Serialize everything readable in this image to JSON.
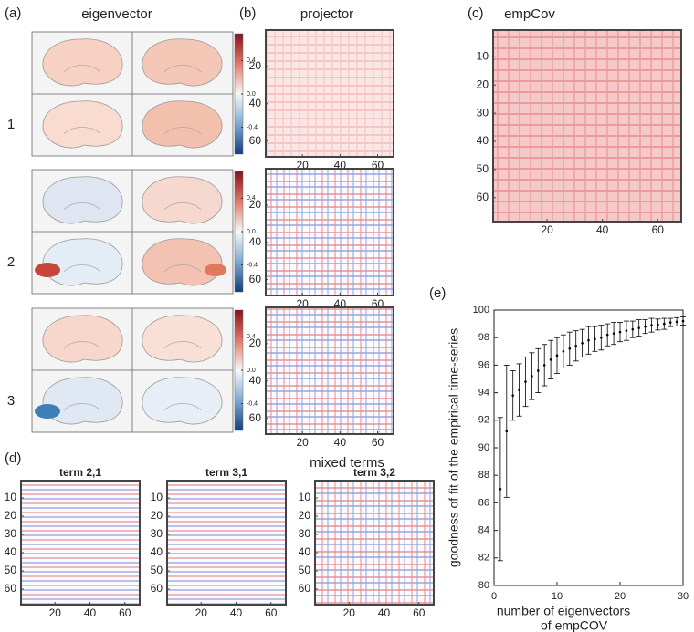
{
  "panel_labels": [
    "(a)",
    "(b)",
    "(c)",
    "(d)",
    "(e)"
  ],
  "eigenvector": {
    "title": "eigenvector",
    "rows": [
      "1",
      "2",
      "3"
    ],
    "colorbar": {
      "lim": [
        -0.72,
        0.72
      ],
      "ticks": [
        0.4,
        {
          "value": 0,
          "label": "0.0"
        },
        -0.4
      ]
    }
  },
  "projector": {
    "title": "projector",
    "xlim": [
      0.5,
      68.5
    ],
    "ylim": [
      0.5,
      68.5
    ],
    "xticks": [
      20,
      40,
      60
    ],
    "yticks": [
      20,
      40,
      60
    ]
  },
  "empcov": {
    "title": "empCov",
    "xlim": [
      0.5,
      68.5
    ],
    "ylim": [
      0.5,
      68.5
    ],
    "xticks": [
      20,
      40,
      60
    ],
    "yticks": [
      10,
      20,
      30,
      40,
      50,
      60
    ]
  },
  "mixed": {
    "title": "mixed terms",
    "terms": [
      "term 2,1",
      "term 3,1",
      "term 3,2"
    ],
    "xlim": [
      0.5,
      68.5
    ],
    "ylim": [
      0.5,
      68.5
    ],
    "xticks": [
      20,
      40,
      60
    ],
    "yticks": [
      10,
      20,
      30,
      40,
      50,
      60
    ]
  },
  "chart_data": {
    "type": "errorbar",
    "ylabel": "goodness of fit of the empirical time-series",
    "xlabel": [
      "number of eigenvectors",
      "of empCOV"
    ],
    "x": [
      1,
      2,
      3,
      4,
      5,
      6,
      7,
      8,
      9,
      10,
      11,
      12,
      13,
      14,
      15,
      16,
      17,
      18,
      19,
      20,
      21,
      22,
      23,
      24,
      25,
      26,
      27,
      28,
      29,
      30
    ],
    "values": [
      87.0,
      91.2,
      93.8,
      94.2,
      94.8,
      95.2,
      95.6,
      96.0,
      96.4,
      96.7,
      97.0,
      97.2,
      97.4,
      97.6,
      97.8,
      97.9,
      98.0,
      98.2,
      98.3,
      98.4,
      98.5,
      98.6,
      98.7,
      98.8,
      98.9,
      98.95,
      99.0,
      99.1,
      99.15,
      99.2
    ],
    "errors": [
      5.2,
      4.8,
      1.8,
      1.9,
      1.8,
      1.7,
      1.6,
      1.5,
      1.4,
      1.3,
      1.2,
      1.2,
      1.1,
      1.0,
      1.0,
      0.9,
      0.9,
      0.8,
      0.8,
      0.7,
      0.7,
      0.6,
      0.6,
      0.5,
      0.5,
      0.4,
      0.4,
      0.3,
      0.3,
      0.3
    ],
    "color": "#000000",
    "xlim": [
      0,
      30
    ],
    "ylim": [
      80,
      100
    ],
    "xticks": [
      0,
      10,
      20,
      30
    ],
    "yticks": [
      80,
      82,
      84,
      86,
      88,
      90,
      92,
      94,
      96,
      98,
      100
    ]
  }
}
